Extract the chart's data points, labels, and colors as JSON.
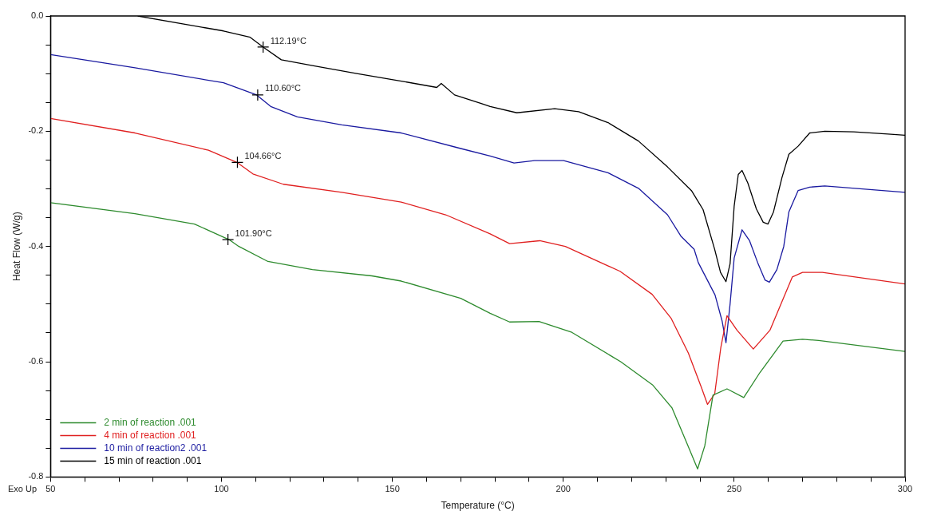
{
  "chart_data": {
    "type": "line",
    "xlabel": "Temperature (°C)",
    "ylabel": "Heat Flow (W/g)",
    "xlim": [
      50,
      300
    ],
    "ylim": [
      -0.8,
      0
    ],
    "xticks": [
      50,
      {
        "value": 60,
        "label": null
      },
      {
        "value": 70,
        "label": null
      },
      {
        "value": 80,
        "label": null
      },
      {
        "value": 90,
        "label": null
      },
      100,
      {
        "value": 110,
        "label": null
      },
      {
        "value": 120,
        "label": null
      },
      {
        "value": 130,
        "label": null
      },
      {
        "value": 140,
        "label": null
      },
      150,
      {
        "value": 160,
        "label": null
      },
      {
        "value": 170,
        "label": null
      },
      {
        "value": 180,
        "label": null
      },
      {
        "value": 190,
        "label": null
      },
      200,
      {
        "value": 210,
        "label": null
      },
      {
        "value": 220,
        "label": null
      },
      {
        "value": 230,
        "label": null
      },
      {
        "value": 240,
        "label": null
      },
      250,
      {
        "value": 260,
        "label": null
      },
      {
        "value": 270,
        "label": null
      },
      {
        "value": 280,
        "label": null
      },
      {
        "value": 290,
        "label": null
      },
      300
    ],
    "yticks": [
      {
        "value": -0.8,
        "label": "-0.8"
      },
      {
        "value": -0.75,
        "label": null
      },
      {
        "value": -0.7,
        "label": null
      },
      {
        "value": -0.65,
        "label": null
      },
      {
        "value": -0.6,
        "label": "-0.6"
      },
      {
        "value": -0.55,
        "label": null
      },
      {
        "value": -0.5,
        "label": null
      },
      {
        "value": -0.45,
        "label": null
      },
      {
        "value": -0.4,
        "label": "-0.4"
      },
      {
        "value": -0.35,
        "label": null
      },
      {
        "value": -0.3,
        "label": null
      },
      {
        "value": -0.25,
        "label": null
      },
      {
        "value": -0.2,
        "label": "-0.2"
      },
      {
        "value": -0.15,
        "label": null
      },
      {
        "value": -0.1,
        "label": null
      },
      {
        "value": -0.05,
        "label": null
      },
      {
        "value": 0,
        "label": "0.0"
      }
    ],
    "grid": false,
    "legend": "bottom left",
    "marker": "none",
    "line_style": "solid",
    "series": [
      {
        "name": "2 min of reaction .001",
        "color": "#2e8b2e",
        "x": [
          50,
          74.7,
          92.1,
          102.2,
          105.1,
          113.6,
          126.6,
          144,
          152.6,
          170,
          178.6,
          184.3,
          192.9,
          202.5,
          216.8,
          226.1,
          231.8,
          236.5,
          239.3,
          241.4,
          243.8,
          247.9,
          252.8,
          257.5,
          264.3,
          270,
          274.7,
          300
        ],
        "values": [
          -0.324,
          -0.343,
          -0.361,
          -0.388,
          -0.4,
          -0.426,
          -0.44,
          -0.451,
          -0.46,
          -0.49,
          -0.516,
          -0.531,
          -0.53,
          -0.549,
          -0.6,
          -0.64,
          -0.68,
          -0.746,
          -0.786,
          -0.746,
          -0.658,
          -0.647,
          -0.662,
          -0.619,
          -0.564,
          -0.561,
          -0.563,
          -0.582
        ]
      },
      {
        "name": "4 min of reaction .001",
        "color": "#e02020",
        "x": [
          50,
          74.7,
          96.2,
          104.5,
          109.2,
          118.1,
          135.2,
          152.6,
          165.6,
          178.6,
          184.3,
          193.1,
          200.6,
          216.6,
          226,
          231.6,
          236.6,
          240.5,
          242.2,
          244.3,
          246.1,
          247.9,
          250.8,
          255.6,
          260.5,
          267,
          270,
          275.8,
          300
        ],
        "values": [
          -0.178,
          -0.203,
          -0.233,
          -0.254,
          -0.274,
          -0.292,
          -0.306,
          -0.323,
          -0.345,
          -0.378,
          -0.395,
          -0.39,
          -0.4,
          -0.443,
          -0.483,
          -0.525,
          -0.585,
          -0.646,
          -0.674,
          -0.656,
          -0.575,
          -0.52,
          -0.545,
          -0.578,
          -0.545,
          -0.453,
          -0.445,
          -0.445,
          -0.465
        ]
      },
      {
        "name": "10 min of reaction2 .001",
        "color": "#1a1aa0",
        "x": [
          50,
          74.7,
          100.6,
          110.3,
          114.4,
          122.2,
          135.2,
          152.6,
          170,
          178.6,
          185.6,
          191.6,
          200.1,
          213.1,
          222,
          230.5,
          234.4,
          238.3,
          239.5,
          244.4,
          246.5,
          247.6,
          248.8,
          250,
          252.3,
          254.5,
          257,
          259,
          260.3,
          262.5,
          264.5,
          266,
          268.7,
          272.1,
          276.5,
          300
        ],
        "values": [
          -0.067,
          -0.09,
          -0.116,
          -0.137,
          -0.157,
          -0.175,
          -0.189,
          -0.203,
          -0.23,
          -0.243,
          -0.255,
          -0.251,
          -0.251,
          -0.272,
          -0.299,
          -0.345,
          -0.382,
          -0.405,
          -0.428,
          -0.484,
          -0.53,
          -0.567,
          -0.5,
          -0.42,
          -0.371,
          -0.39,
          -0.43,
          -0.458,
          -0.462,
          -0.44,
          -0.4,
          -0.34,
          -0.303,
          -0.297,
          -0.295,
          -0.306
        ]
      },
      {
        "name": "15 min of reaction .001",
        "color": "#000000",
        "x": [
          75.5,
          100.6,
          108.4,
          112.2,
          117.5,
          126.6,
          139.6,
          152.6,
          163,
          164.3,
          168.2,
          176,
          178.6,
          186.4,
          197.5,
          204.5,
          213.1,
          222,
          230.5,
          237.5,
          240.9,
          244.3,
          246,
          247.6,
          248.8,
          250,
          251.2,
          252.3,
          254,
          256.5,
          258.5,
          259.9,
          261.5,
          264,
          266,
          268.7,
          272.1,
          276.5,
          285,
          295,
          300
        ],
        "values": [
          0,
          -0.026,
          -0.037,
          -0.054,
          -0.076,
          -0.086,
          -0.1,
          -0.113,
          -0.124,
          -0.117,
          -0.137,
          -0.152,
          -0.157,
          -0.168,
          -0.161,
          -0.166,
          -0.185,
          -0.217,
          -0.262,
          -0.303,
          -0.336,
          -0.405,
          -0.445,
          -0.461,
          -0.43,
          -0.33,
          -0.275,
          -0.268,
          -0.29,
          -0.335,
          -0.358,
          -0.361,
          -0.34,
          -0.28,
          -0.24,
          -0.226,
          -0.203,
          -0.2,
          -0.201,
          -0.205,
          -0.207
        ]
      }
    ],
    "annotations": [
      {
        "text": "112.19°C",
        "x": 112.19,
        "y": -0.054
      },
      {
        "text": "110.60°C",
        "x": 110.6,
        "y": -0.137
      },
      {
        "text": "104.66°C",
        "x": 104.66,
        "y": -0.254
      },
      {
        "text": "101.90°C",
        "x": 101.9,
        "y": -0.388
      },
      "Exo Up"
    ]
  }
}
